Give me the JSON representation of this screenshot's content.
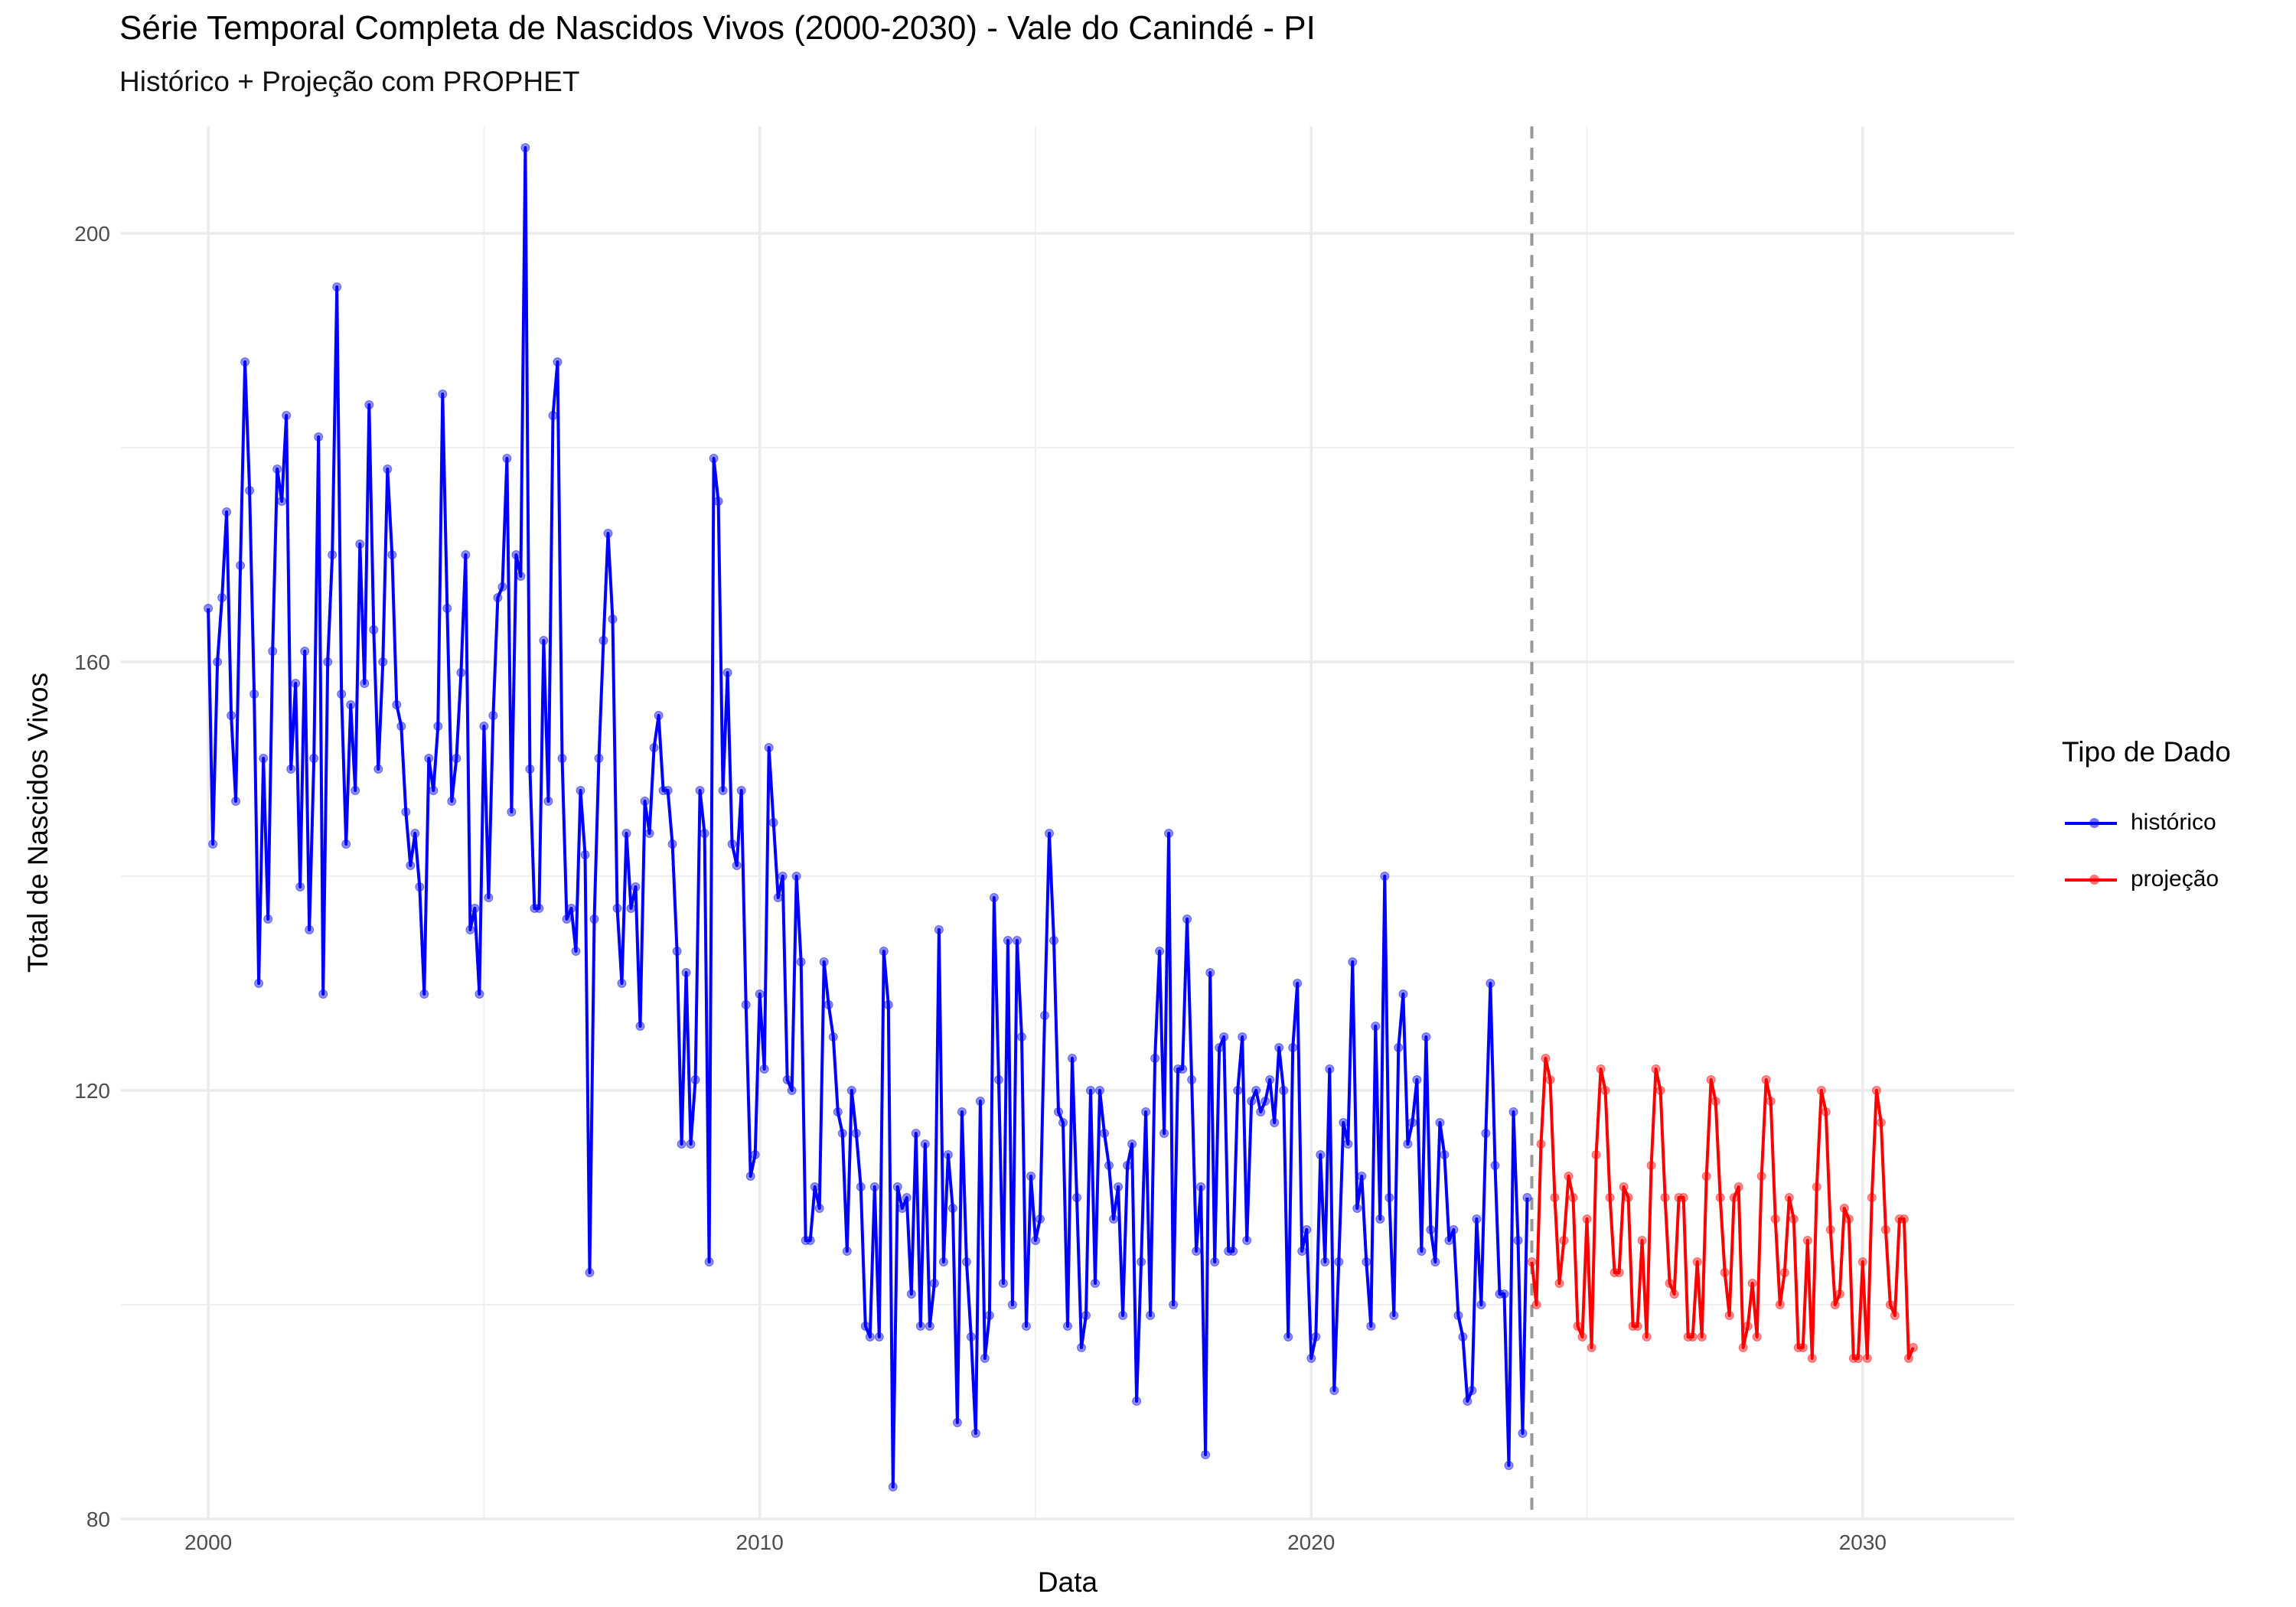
{
  "chart_data": {
    "type": "line",
    "title": "Série Temporal Completa de Nascidos Vivos (2000-2030) -  Vale do Canindé - PI",
    "subtitle": "Histórico + Projeção com PROPHET",
    "xlabel": "Data",
    "ylabel": "Total de Nascidos Vivos",
    "x_ticks": [
      "2000",
      "2010",
      "2020",
      "2030"
    ],
    "y_ticks": [
      80,
      120,
      160,
      200
    ],
    "xlim": [
      "1998-06-01",
      "2032-10-01"
    ],
    "ylim": [
      80,
      210
    ],
    "grid": true,
    "legend_title": "Tipo de Dado",
    "legend_position": "right",
    "forecast_start_line": "2024-01-01",
    "series": [
      {
        "name": "histórico",
        "color": "#0000ff",
        "start": "2000-01",
        "frequency": "monthly",
        "values": [
          165,
          143,
          160,
          166,
          174,
          155,
          147,
          169,
          188,
          176,
          157,
          130,
          151,
          136,
          161,
          178,
          175,
          183,
          150,
          158,
          139,
          161,
          135,
          151,
          181,
          129,
          160,
          170,
          195,
          157,
          143,
          156,
          148,
          171,
          158,
          184,
          163,
          150,
          160,
          178,
          170,
          156,
          154,
          146,
          141,
          144,
          139,
          129,
          151,
          148,
          154,
          185,
          165,
          147,
          151,
          159,
          170,
          135,
          137,
          129,
          154,
          138,
          155,
          166,
          167,
          179,
          146,
          170,
          168,
          208,
          150,
          137,
          137,
          162,
          147,
          183,
          188,
          151,
          136,
          137,
          133,
          148,
          142,
          103,
          136,
          151,
          162,
          172,
          164,
          137,
          130,
          144,
          137,
          139,
          126,
          147,
          144,
          152,
          155,
          148,
          148,
          143,
          133,
          115,
          131,
          115,
          121,
          148,
          144,
          104,
          179,
          175,
          148,
          159,
          143,
          141,
          148,
          128,
          112,
          114,
          129,
          122,
          152,
          145,
          138,
          140,
          121,
          120,
          140,
          132,
          106,
          106,
          111,
          109,
          132,
          128,
          125,
          118,
          116,
          105,
          120,
          116,
          111,
          98,
          97,
          111,
          97,
          133,
          128,
          83,
          111,
          109,
          110,
          101,
          116,
          98,
          115,
          98,
          102,
          135,
          104,
          114,
          109,
          89,
          118,
          104,
          97,
          88,
          119,
          95,
          99,
          138,
          121,
          102,
          134,
          100,
          134,
          125,
          98,
          112,
          106,
          108,
          127,
          144,
          134,
          118,
          117,
          98,
          123,
          110,
          96,
          99,
          120,
          102,
          120,
          116,
          113,
          108,
          111,
          99,
          113,
          115,
          91,
          104,
          118,
          99,
          123,
          133,
          116,
          144,
          100,
          122,
          122,
          136,
          121,
          105,
          111,
          86,
          131,
          104,
          124,
          125,
          105,
          105,
          120,
          125,
          106,
          119,
          120,
          118,
          119,
          121,
          117,
          124,
          120,
          97,
          124,
          130,
          105,
          107,
          95,
          97,
          114,
          104,
          122,
          92,
          104,
          117,
          115,
          132,
          109,
          112,
          104,
          98,
          126,
          108,
          140,
          110,
          99,
          124,
          129,
          115,
          117,
          121,
          105,
          125,
          107,
          104,
          117,
          114,
          106,
          107,
          99,
          97,
          91,
          92,
          108,
          100,
          116,
          130,
          113,
          101,
          101,
          85,
          118,
          106,
          88,
          110
        ]
      },
      {
        "name": "projeção",
        "color": "#ff0000",
        "start": "2024-01",
        "frequency": "monthly",
        "values": [
          104,
          100,
          115,
          123,
          121,
          110,
          102,
          106,
          112,
          110,
          98,
          97,
          108,
          96,
          114,
          122,
          120,
          110,
          103,
          103,
          111,
          110,
          98,
          98,
          106,
          97,
          113,
          122,
          120,
          110,
          102,
          101,
          110,
          110,
          97,
          97,
          104,
          97,
          112,
          121,
          119,
          110,
          103,
          99,
          110,
          111,
          96,
          98,
          102,
          97,
          112,
          121,
          119,
          108,
          100,
          103,
          110,
          108,
          96,
          96,
          106,
          95,
          111,
          120,
          118,
          107,
          100,
          101,
          109,
          108,
          95,
          95,
          104,
          95,
          110,
          120,
          117,
          107,
          100,
          99,
          108,
          108,
          95,
          96
        ]
      }
    ]
  }
}
